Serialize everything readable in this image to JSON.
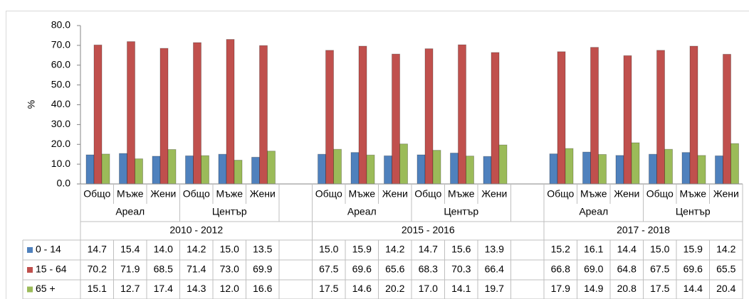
{
  "chart_data": {
    "type": "bar",
    "y_label": "%",
    "ylim": [
      0,
      80
    ],
    "yticks": [
      {
        "value": 0,
        "label": "0.0"
      },
      {
        "value": 10,
        "label": "10.0"
      },
      {
        "value": 20,
        "label": "20.0"
      },
      {
        "value": 30,
        "label": "30.0"
      },
      {
        "value": 40,
        "label": "40.0"
      },
      {
        "value": 50,
        "label": "50.0"
      },
      {
        "value": 60,
        "label": "60.0"
      },
      {
        "value": 70,
        "label": "70.0"
      },
      {
        "value": 80,
        "label": "80.0"
      }
    ],
    "categories": [
      "Общо",
      "Мъже",
      "Жени",
      "Общо",
      "Мъже",
      "Жени",
      null,
      "Общо",
      "Мъже",
      "Жени",
      "Общо",
      "Мъже",
      "Жени",
      null,
      "Общо",
      "Мъже",
      "Жени",
      "Общо",
      "Мъже",
      "Жени"
    ],
    "subgroups": [
      "Ареал",
      "Център",
      "Ареал",
      "Център",
      "Ареал",
      "Център"
    ],
    "periods": [
      "2010 - 2012",
      "2015 - 2016",
      "2017 - 2018"
    ],
    "series": [
      {
        "name": "0 - 14",
        "color": "#4f81bd",
        "values": [
          14.7,
          15.4,
          14.0,
          14.2,
          15.0,
          13.5,
          null,
          15.0,
          15.9,
          14.2,
          14.7,
          15.6,
          13.9,
          null,
          15.2,
          16.1,
          14.4,
          15.0,
          15.9,
          14.2
        ],
        "value_labels": [
          "14.7",
          "15.4",
          "14.0",
          "14.2",
          "15.0",
          "13.5",
          null,
          "15.0",
          "15.9",
          "14.2",
          "14.7",
          "15.6",
          "13.9",
          null,
          "15.2",
          "16.1",
          "14.4",
          "15.0",
          "15.9",
          "14.2"
        ]
      },
      {
        "name": "15 - 64",
        "color": "#c0504d",
        "values": [
          70.2,
          71.9,
          68.5,
          71.4,
          73.0,
          69.9,
          null,
          67.5,
          69.6,
          65.6,
          68.3,
          70.3,
          66.4,
          null,
          66.8,
          69.0,
          64.8,
          67.5,
          69.6,
          65.5
        ],
        "value_labels": [
          "70.2",
          "71.9",
          "68.5",
          "71.4",
          "73.0",
          "69.9",
          null,
          "67.5",
          "69.6",
          "65.6",
          "68.3",
          "70.3",
          "66.4",
          null,
          "66.8",
          "69.0",
          "64.8",
          "67.5",
          "69.6",
          "65.5"
        ]
      },
      {
        "name": "65 +",
        "color": "#9bbb59",
        "values": [
          15.1,
          12.7,
          17.4,
          14.3,
          12.0,
          16.6,
          null,
          17.5,
          14.6,
          20.2,
          17.0,
          14.1,
          19.7,
          null,
          17.9,
          14.9,
          20.8,
          17.5,
          14.4,
          20.4
        ],
        "value_labels": [
          "15.1",
          "12.7",
          "17.4",
          "14.3",
          "12.0",
          "16.6",
          null,
          "17.5",
          "14.6",
          "20.2",
          "17.0",
          "14.1",
          "19.7",
          null,
          "17.9",
          "14.9",
          "20.8",
          "17.5",
          "14.4",
          "20.4"
        ]
      }
    ]
  }
}
